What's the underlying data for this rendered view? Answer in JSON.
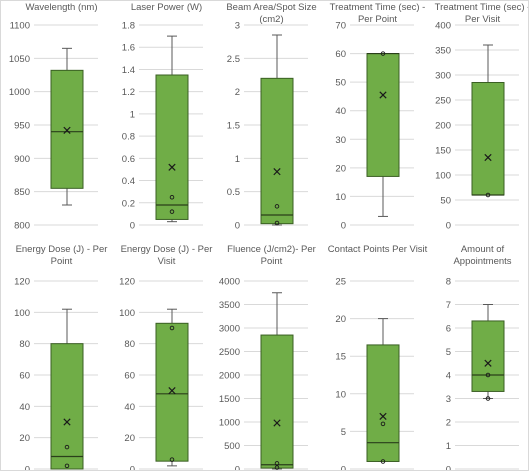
{
  "chart_data": [
    {
      "type": "box",
      "title": [
        "Wavelength (nm)"
      ],
      "yticks": [
        800,
        850,
        900,
        950,
        1000,
        1050,
        1100
      ],
      "ylim": [
        800,
        1100
      ],
      "box": {
        "min": 830,
        "q1": 855,
        "median": 940,
        "q3": 1032,
        "max": 1065,
        "mean": 942,
        "points": []
      }
    },
    {
      "type": "box",
      "title": [
        "Laser Power (W)"
      ],
      "yticks": [
        0,
        0.2,
        0.4,
        0.6,
        0.8,
        1,
        1.2,
        1.4,
        1.6,
        1.8
      ],
      "ylim": [
        0,
        1.8
      ],
      "box": {
        "min": 0.03,
        "q1": 0.05,
        "median": 0.18,
        "q3": 1.35,
        "max": 1.7,
        "mean": 0.52,
        "points": [
          0.25,
          0.12
        ]
      }
    },
    {
      "type": "box",
      "title": [
        "Beam Area/Spot Size",
        "(cm2)"
      ],
      "yticks": [
        0,
        0.5,
        1,
        1.5,
        2,
        2.5,
        3
      ],
      "ylim": [
        0,
        3
      ],
      "box": {
        "min": 0,
        "q1": 0.02,
        "median": 0.15,
        "q3": 2.2,
        "max": 2.85,
        "mean": 0.8,
        "points": [
          0.28,
          0.03
        ]
      }
    },
    {
      "type": "box",
      "title": [
        "Treatment Time (sec) -",
        "Per Point"
      ],
      "yticks": [
        0,
        10,
        20,
        30,
        40,
        50,
        60,
        70
      ],
      "ylim": [
        0,
        70
      ],
      "box": {
        "min": 3,
        "q1": 17,
        "median": 60,
        "q3": 60,
        "max": 60,
        "mean": 45.5,
        "points": [
          60
        ]
      }
    },
    {
      "type": "box",
      "title": [
        "Treatment Time (sec) -",
        "Per Visit"
      ],
      "yticks": [
        0,
        50,
        100,
        150,
        200,
        250,
        300,
        350,
        400
      ],
      "ylim": [
        0,
        400
      ],
      "box": {
        "min": 60,
        "q1": 60,
        "median": 60,
        "q3": 285,
        "max": 360,
        "mean": 135,
        "points": [
          60
        ]
      }
    },
    {
      "type": "box",
      "title": [
        "Energy Dose (J) - Per",
        "Point"
      ],
      "yticks": [
        0,
        20,
        40,
        60,
        80,
        100,
        120
      ],
      "ylim": [
        0,
        120
      ],
      "box": {
        "min": 0,
        "q1": 0,
        "median": 8,
        "q3": 80,
        "max": 102,
        "mean": 30,
        "points": [
          14,
          2
        ]
      }
    },
    {
      "type": "box",
      "title": [
        "Energy Dose (J) - Per",
        "Visit"
      ],
      "yticks": [
        0,
        20,
        40,
        60,
        80,
        100,
        120
      ],
      "ylim": [
        0,
        120
      ],
      "box": {
        "min": 2,
        "q1": 5,
        "median": 48,
        "q3": 93,
        "max": 102,
        "mean": 50,
        "points": [
          90,
          6
        ]
      }
    },
    {
      "type": "box",
      "title": [
        "Fluence (J/cm2)- Per",
        "Point"
      ],
      "yticks": [
        0,
        500,
        1000,
        1500,
        2000,
        2500,
        3000,
        3500,
        4000
      ],
      "ylim": [
        0,
        4000
      ],
      "box": {
        "min": 0,
        "q1": 20,
        "median": 90,
        "q3": 2850,
        "max": 3750,
        "mean": 980,
        "points": [
          120,
          30
        ]
      }
    },
    {
      "type": "box",
      "title": [
        "Contact Points Per Visit"
      ],
      "yticks": [
        0,
        5,
        10,
        15,
        20,
        25
      ],
      "ylim": [
        0,
        25
      ],
      "box": {
        "min": 1,
        "q1": 1,
        "median": 3.5,
        "q3": 16.5,
        "max": 20,
        "mean": 7,
        "points": [
          6,
          1
        ]
      }
    },
    {
      "type": "box",
      "title": [
        "Amount of",
        "Appointments"
      ],
      "yticks": [
        0,
        1,
        2,
        3,
        4,
        5,
        6,
        7,
        8
      ],
      "ylim": [
        0,
        8
      ],
      "box": {
        "min": 3,
        "q1": 3.3,
        "median": 4,
        "q3": 6.3,
        "max": 7,
        "mean": 4.5,
        "points": [
          4,
          3
        ]
      }
    }
  ]
}
